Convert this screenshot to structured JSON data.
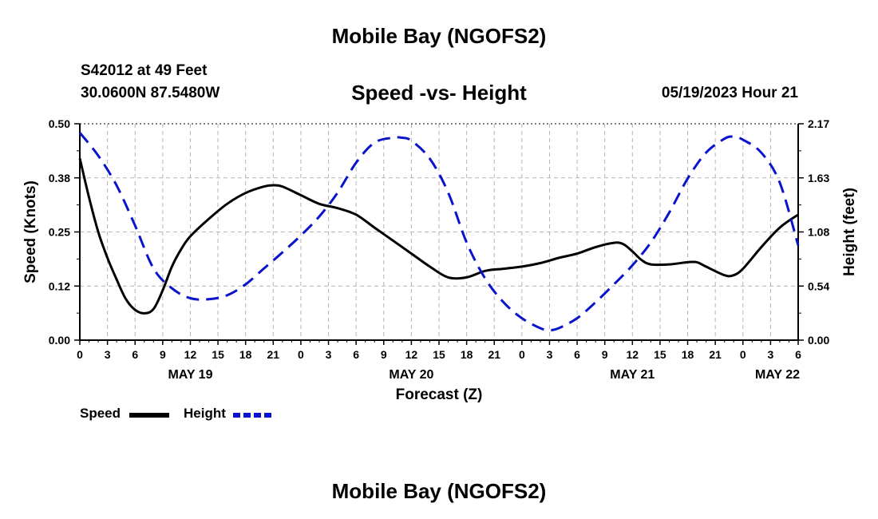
{
  "header": {
    "title": "Mobile Bay (NGOFS2)",
    "station": "S42012 at 49 Feet",
    "coordinates": "30.0600N  87.5480W",
    "chart_title": "Speed -vs- Height",
    "datetime": "05/19/2023 Hour 21",
    "footer_title": "Mobile Bay (NGOFS2)"
  },
  "colors": {
    "speed": "#000000",
    "height": "#0a14cc",
    "grid": "#b4b4b4"
  },
  "legend": {
    "speed_label": "Speed",
    "height_label": "Height"
  },
  "chart_data": {
    "type": "line",
    "title": "Speed -vs- Height",
    "xlabel": "Forecast (Z)",
    "ylabel_left": "Speed (Knots)",
    "ylabel_right": "Height (feet)",
    "x_unit": "hours since 05/19/2023 00Z",
    "xlim": [
      0,
      78
    ],
    "x_ticks": [
      0,
      3,
      6,
      9,
      12,
      15,
      18,
      21,
      24,
      27,
      30,
      33,
      36,
      39,
      42,
      45,
      48,
      51,
      54,
      57,
      60,
      63,
      66,
      69,
      72,
      75,
      78
    ],
    "x_tick_labels": [
      "0",
      "3",
      "6",
      "9",
      "12",
      "15",
      "18",
      "21",
      "0",
      "3",
      "6",
      "9",
      "12",
      "15",
      "18",
      "21",
      "0",
      "3",
      "6",
      "9",
      "12",
      "15",
      "18",
      "21",
      "0",
      "3",
      "6"
    ],
    "day_labels": [
      {
        "x": 12,
        "label": "MAY 19"
      },
      {
        "x": 36,
        "label": "MAY 20"
      },
      {
        "x": 60,
        "label": "MAY 21"
      },
      {
        "x": 78,
        "label": "MAY 22"
      }
    ],
    "y_left": {
      "min": 0,
      "max": 0.5,
      "ticks": [
        0,
        0.125,
        0.25,
        0.375,
        0.5
      ],
      "tick_labels": [
        "0.00",
        "0.12",
        "0.25",
        "0.38",
        "0.50"
      ]
    },
    "y_right": {
      "min": 0,
      "max": 2.17,
      "ticks": [
        0,
        0.5425,
        1.085,
        1.6275,
        2.17
      ],
      "tick_labels": [
        "0.00",
        "0.54",
        "1.08",
        "1.63",
        "2.17"
      ]
    },
    "grid": true,
    "series": [
      {
        "name": "Speed",
        "axis": "left",
        "style": "solid",
        "x": [
          0,
          1,
          2,
          3,
          4,
          5,
          6,
          7,
          8,
          9,
          10,
          11,
          12,
          14,
          16,
          18,
          20,
          21,
          22,
          24,
          26,
          28,
          30,
          32,
          34,
          36,
          38,
          40,
          42,
          44,
          46,
          48,
          50,
          52,
          54,
          56,
          58,
          59,
          60,
          61,
          62,
          64,
          66,
          67,
          68,
          70,
          71,
          72,
          74,
          76,
          78
        ],
        "values": [
          0.42,
          0.33,
          0.25,
          0.19,
          0.14,
          0.095,
          0.07,
          0.062,
          0.072,
          0.115,
          0.17,
          0.21,
          0.24,
          0.28,
          0.315,
          0.34,
          0.355,
          0.358,
          0.355,
          0.335,
          0.315,
          0.305,
          0.29,
          0.26,
          0.23,
          0.2,
          0.17,
          0.145,
          0.145,
          0.16,
          0.165,
          0.17,
          0.178,
          0.19,
          0.2,
          0.215,
          0.225,
          0.222,
          0.205,
          0.185,
          0.175,
          0.175,
          0.18,
          0.18,
          0.17,
          0.15,
          0.15,
          0.165,
          0.215,
          0.26,
          0.29
        ]
      },
      {
        "name": "Height",
        "axis": "right",
        "style": "dashed",
        "x": [
          0,
          2,
          4,
          6,
          8,
          10,
          12,
          14,
          16,
          18,
          20,
          22,
          24,
          26,
          28,
          30,
          32,
          34,
          35,
          36,
          38,
          40,
          42,
          44,
          46,
          48,
          50,
          51,
          52,
          54,
          56,
          58,
          60,
          62,
          64,
          66,
          68,
          70,
          71,
          72,
          74,
          76,
          78
        ],
        "values": [
          2.08,
          1.85,
          1.55,
          1.15,
          0.72,
          0.52,
          0.42,
          0.41,
          0.45,
          0.56,
          0.72,
          0.88,
          1.05,
          1.24,
          1.48,
          1.78,
          1.98,
          2.03,
          2.03,
          2.0,
          1.82,
          1.48,
          0.98,
          0.62,
          0.38,
          0.22,
          0.12,
          0.1,
          0.12,
          0.22,
          0.38,
          0.56,
          0.75,
          0.98,
          1.28,
          1.62,
          1.88,
          2.02,
          2.04,
          2.01,
          1.88,
          1.58,
          0.95
        ]
      }
    ]
  }
}
